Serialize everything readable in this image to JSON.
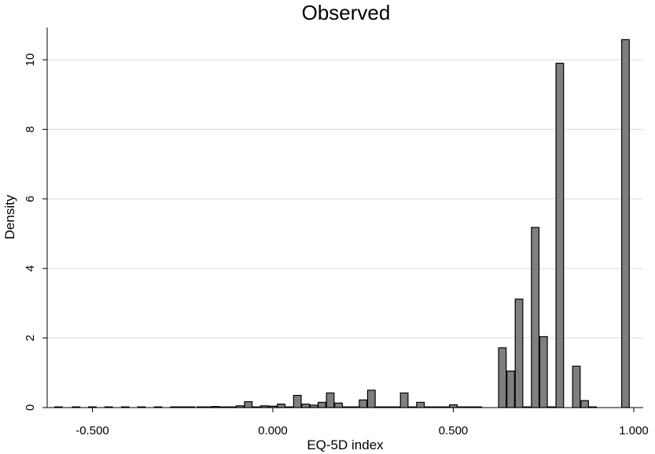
{
  "chart_data": {
    "type": "bar",
    "title": "Observed",
    "xlabel": "EQ-5D index",
    "ylabel": "Density",
    "xlim": [
      -0.61,
      1.03
    ],
    "ylim": [
      0,
      11
    ],
    "x_ticks": [
      -0.5,
      0,
      0.5,
      1
    ],
    "x_tick_labels": [
      "-0.500",
      "0.000",
      "0.500",
      "1.000"
    ],
    "y_ticks": [
      0,
      2,
      4,
      6,
      8,
      10
    ],
    "y_tick_labels": [
      "0",
      "2",
      "4",
      "6",
      "8",
      "10"
    ],
    "grid": true,
    "bar_color": "#7f7f7f",
    "bin_width": 0.021,
    "x": [
      -0.594,
      -0.545,
      -0.5,
      -0.455,
      -0.409,
      -0.364,
      -0.318,
      -0.273,
      -0.25,
      -0.227,
      -0.2,
      -0.18,
      -0.159,
      -0.136,
      -0.114,
      -0.091,
      -0.068,
      -0.045,
      -0.023,
      0.0,
      0.023,
      0.045,
      0.068,
      0.091,
      0.114,
      0.136,
      0.159,
      0.182,
      0.205,
      0.227,
      0.25,
      0.273,
      0.295,
      0.318,
      0.341,
      0.364,
      0.386,
      0.409,
      0.432,
      0.455,
      0.477,
      0.5,
      0.523,
      0.545,
      0.568,
      0.636,
      0.659,
      0.682,
      0.705,
      0.727,
      0.75,
      0.773,
      0.795,
      0.841,
      0.864,
      0.886,
      0.977
    ],
    "values": [
      0.02,
      0.02,
      0.02,
      0.02,
      0.02,
      0.02,
      0.02,
      0.02,
      0.02,
      0.02,
      0.02,
      0.02,
      0.03,
      0.02,
      0.02,
      0.05,
      0.17,
      0.02,
      0.05,
      0.04,
      0.1,
      0.02,
      0.35,
      0.1,
      0.07,
      0.15,
      0.42,
      0.13,
      0.02,
      0.02,
      0.22,
      0.5,
      0.02,
      0.02,
      0.02,
      0.42,
      0.02,
      0.15,
      0.02,
      0.02,
      0.02,
      0.08,
      0.02,
      0.02,
      0.02,
      1.72,
      1.05,
      3.12,
      0.02,
      5.18,
      2.04,
      0.02,
      9.9,
      1.19,
      0.2,
      0.02,
      10.58
    ]
  }
}
